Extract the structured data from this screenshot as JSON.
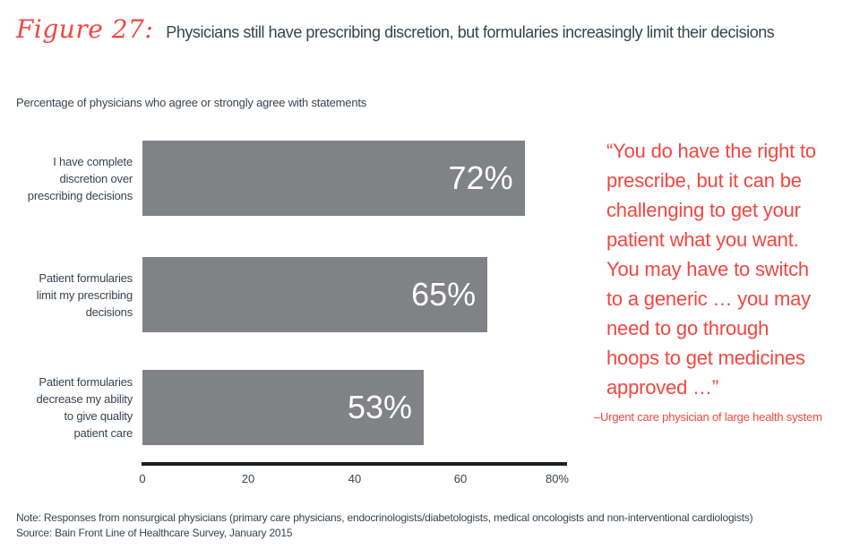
{
  "figure": {
    "label": "Figure 27:",
    "title": "Physicians still have prescribing discretion, but formularies increasingly limit their decisions"
  },
  "subtitle": "Percentage of physicians who agree or strongly agree with statements",
  "chart_data": {
    "type": "bar",
    "orientation": "horizontal",
    "title": "Percentage of physicians who agree or strongly agree with statements",
    "categories": [
      "I have complete\ndiscretion over\nprescribing decisions",
      "Patient formularies\nlimit my prescribing\ndecisions",
      "Patient formularies\ndecrease my ability\nto give quality\npatient care"
    ],
    "values": [
      72,
      65,
      53
    ],
    "value_labels": [
      "72%",
      "65%",
      "53%"
    ],
    "xlabel": "",
    "ylabel": "",
    "xlim": [
      0,
      80
    ],
    "x_ticks": [
      "0",
      "20",
      "40",
      "60",
      "80%"
    ],
    "grid": false,
    "legend": null,
    "bar_color": "#808285",
    "value_label_color": "#ffffff"
  },
  "quote": {
    "text": "“You do have the right to\nprescribe, but it can be\nchallenging to get your\npatient what you want.\nYou may have to switch\nto a generic … you may\nneed to go through\nhoops to get medicines\napproved …”",
    "attribution": "–Urgent care physician of large health system"
  },
  "footer": {
    "note": "Note: Responses from nonsurgical physicians (primary care physicians, endocrinologists/diabetologists, medical oncologists and non-interventional cardiologists)",
    "source": "Source: Bain Front Line of Healthcare Survey, January 2015"
  },
  "colors": {
    "accent_red": "#f24641",
    "bar_gray": "#808285",
    "text_dark": "#3b434c",
    "axis_black": "#231f20"
  }
}
